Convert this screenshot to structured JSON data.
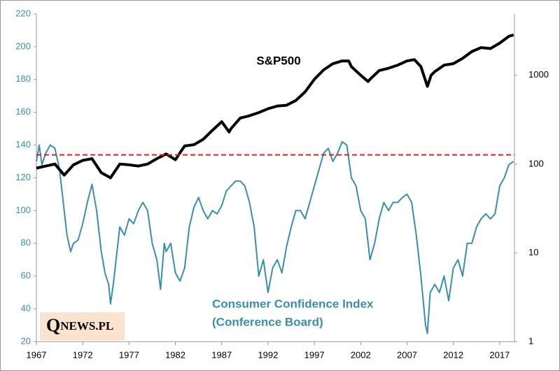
{
  "chart_data": {
    "type": "line",
    "xlim": [
      1967,
      2018.6
    ],
    "xticks": [
      1967,
      1972,
      1977,
      1982,
      1987,
      1992,
      1997,
      2002,
      2007,
      2012,
      2017
    ],
    "ylim": [
      20,
      220
    ],
    "yticks": [
      20,
      40,
      60,
      80,
      100,
      120,
      140,
      160,
      180,
      200,
      220
    ],
    "y2lim": [
      1,
      4900
    ],
    "y2ticks": [
      1,
      10,
      100,
      1000
    ],
    "y2_log": true,
    "grid": false,
    "y_tick_color": "#3a8fa8",
    "y2_tick_color": "#000000",
    "series": [
      {
        "name": "S&P500",
        "color": "#000000",
        "axis": "y2",
        "x": [
          1967,
          1968,
          1969,
          1970,
          1971,
          1972,
          1973,
          1974,
          1975,
          1976,
          1977,
          1978,
          1979,
          1980,
          1981,
          1982,
          1983,
          1984,
          1985,
          1986,
          1987,
          1987.8,
          1988,
          1989,
          1990,
          1991,
          1992,
          1993,
          1994,
          1995,
          1996,
          1997,
          1998,
          1999,
          2000,
          2000.7,
          2001,
          2002,
          2002.8,
          2003,
          2004,
          2005,
          2006,
          2007,
          2007.8,
          2008.5,
          2009.2,
          2009.6,
          2010,
          2011,
          2012,
          2013,
          2014,
          2015,
          2016,
          2017,
          2018,
          2018.5
        ],
        "values": [
          90,
          95,
          100,
          75,
          98,
          110,
          115,
          80,
          70,
          100,
          98,
          95,
          100,
          115,
          130,
          112,
          160,
          165,
          190,
          240,
          300,
          230,
          250,
          330,
          350,
          380,
          420,
          450,
          460,
          520,
          650,
          900,
          1150,
          1350,
          1450,
          1450,
          1250,
          1000,
          850,
          900,
          1130,
          1200,
          1300,
          1450,
          1500,
          1250,
          750,
          1000,
          1100,
          1300,
          1350,
          1550,
          1850,
          2050,
          2000,
          2300,
          2750,
          2850
        ]
      },
      {
        "name": "Consumer Confidence Index",
        "color": "#3a8fa8",
        "axis": "y",
        "x": [
          1967,
          1967.3,
          1967.6,
          1968,
          1968.5,
          1969,
          1969.5,
          1970,
          1970.3,
          1970.7,
          1971,
          1971.5,
          1972,
          1972.5,
          1973,
          1973.5,
          1974,
          1974.4,
          1974.8,
          1975,
          1975.3,
          1975.7,
          1976,
          1976.5,
          1977,
          1977.5,
          1978,
          1978.5,
          1979,
          1979.5,
          1980,
          1980.4,
          1980.8,
          1981,
          1981.5,
          1982,
          1982.5,
          1983,
          1983.5,
          1984,
          1984.5,
          1985,
          1985.5,
          1986,
          1986.5,
          1987,
          1987.5,
          1988,
          1988.5,
          1989,
          1989.5,
          1990,
          1990.5,
          1991,
          1991.5,
          1992,
          1992.5,
          1993,
          1993.5,
          1994,
          1994.5,
          1995,
          1995.5,
          1996,
          1996.5,
          1997,
          1997.5,
          1998,
          1998.5,
          1999,
          1999.5,
          2000,
          2000.5,
          2001,
          2001.5,
          2002,
          2002.5,
          2003,
          2003.5,
          2004,
          2004.5,
          2005,
          2005.5,
          2006,
          2006.5,
          2007,
          2007.5,
          2008,
          2008.5,
          2009,
          2009.2,
          2009.5,
          2010,
          2010.5,
          2011,
          2011.5,
          2012,
          2012.5,
          2013,
          2013.5,
          2014,
          2014.5,
          2015,
          2015.5,
          2016,
          2016.5,
          2017,
          2017.5,
          2018,
          2018.5
        ],
        "values": [
          130,
          140,
          128,
          135,
          140,
          138,
          125,
          100,
          85,
          75,
          80,
          82,
          92,
          105,
          116,
          100,
          75,
          62,
          55,
          43,
          55,
          75,
          90,
          85,
          95,
          92,
          100,
          105,
          100,
          80,
          70,
          52,
          80,
          75,
          80,
          62,
          57,
          65,
          90,
          102,
          108,
          100,
          95,
          100,
          98,
          103,
          112,
          115,
          118,
          118,
          115,
          105,
          90,
          60,
          70,
          50,
          65,
          70,
          62,
          78,
          90,
          100,
          100,
          95,
          105,
          115,
          125,
          135,
          138,
          130,
          135,
          142,
          140,
          120,
          115,
          100,
          95,
          70,
          80,
          95,
          105,
          100,
          105,
          105,
          108,
          110,
          105,
          85,
          60,
          30,
          25,
          50,
          55,
          50,
          60,
          45,
          65,
          70,
          60,
          80,
          80,
          90,
          95,
          98,
          95,
          98,
          115,
          120,
          128,
          130
        ]
      }
    ],
    "reference_line": {
      "value": 134,
      "color": "#e02020"
    },
    "annotations": [
      "(Conference Board)"
    ],
    "logo": {
      "initial": "Q",
      "rest": "NEWS.PL"
    }
  }
}
